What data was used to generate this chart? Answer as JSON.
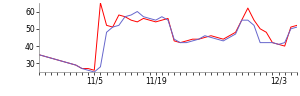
{
  "red_y": [
    35,
    34,
    33,
    32,
    31,
    30,
    29,
    27,
    27,
    26,
    65,
    52,
    51,
    58,
    57,
    55,
    54,
    56,
    55,
    54,
    55,
    56,
    43,
    42,
    43,
    44,
    44,
    45,
    46,
    45,
    44,
    46,
    48,
    55,
    62,
    55,
    50,
    48,
    42,
    41,
    40,
    51,
    52
  ],
  "blue_y": [
    35,
    34,
    33,
    32,
    31,
    30,
    29,
    27,
    26,
    25,
    28,
    48,
    51,
    52,
    57,
    58,
    60,
    57,
    56,
    55,
    57,
    55,
    44,
    42,
    42,
    43,
    44,
    46,
    45,
    44,
    43,
    45,
    47,
    55,
    55,
    52,
    42,
    42,
    42,
    41,
    42,
    50,
    51
  ],
  "xlim": [
    0,
    42
  ],
  "ylim": [
    25,
    65
  ],
  "yticks": [
    30,
    40,
    50,
    60
  ],
  "xtick_positions": [
    9,
    19,
    29,
    39
  ],
  "xtick_labels": [
    "11/5",
    "11/19",
    "",
    "12/3"
  ],
  "red_color": "#ff0000",
  "blue_color": "#6666cc",
  "bg_color": "#ffffff",
  "linewidth": 0.7
}
